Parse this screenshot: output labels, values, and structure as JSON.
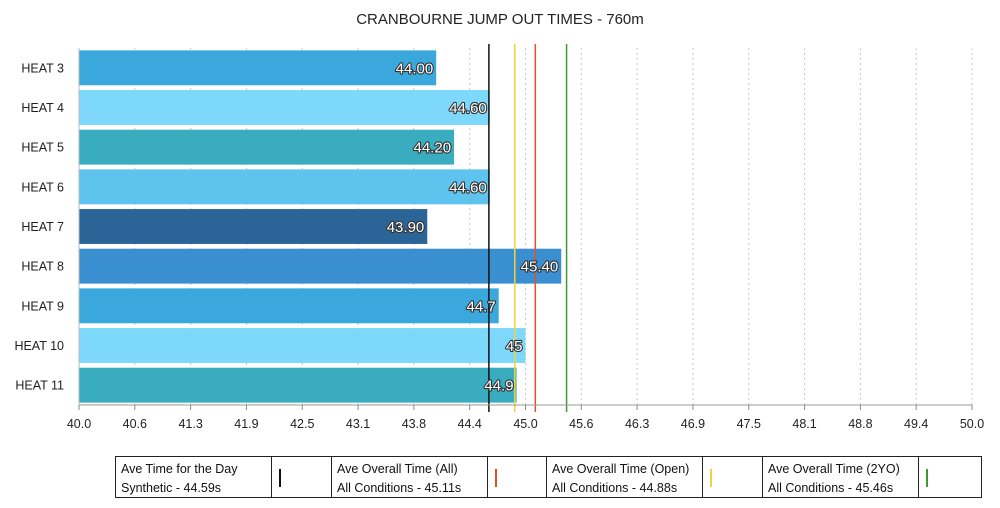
{
  "chart_data": {
    "type": "bar",
    "orientation": "horizontal",
    "title": "CRANBOURNE JUMP OUT TIMES - 760m",
    "categories": [
      "HEAT 3",
      "HEAT 4",
      "HEAT 5",
      "HEAT 6",
      "HEAT 7",
      "HEAT 8",
      "HEAT 9",
      "HEAT 10",
      "HEAT 11"
    ],
    "values": [
      44.0,
      44.6,
      44.2,
      44.6,
      43.9,
      45.4,
      44.7,
      45,
      44.9
    ],
    "value_labels": [
      "44.00",
      "44.60",
      "44.20",
      "44.60",
      "43.90",
      "45.40",
      "44.7",
      "45",
      "44.9"
    ],
    "bar_colors": [
      "#3aa8dd",
      "#7ed8fb",
      "#3aacc0",
      "#5ec3ed",
      "#2b6497",
      "#3a8fd1",
      "#3aa8dd",
      "#7ed8fb",
      "#3aacc0"
    ],
    "xlim": [
      40.0,
      50.0
    ],
    "x_ticks": [
      "40.0",
      "40.6",
      "41.3",
      "41.9",
      "42.5",
      "43.1",
      "43.8",
      "44.4",
      "45.0",
      "45.6",
      "46.3",
      "46.9",
      "47.5",
      "48.1",
      "48.8",
      "49.4",
      "50.0"
    ],
    "grid": "vertical-dashed",
    "legend_position": "bottom",
    "reference_lines": [
      {
        "value": 44.59,
        "color": "#111111",
        "label_line1": "Ave Time for the Day",
        "label_line2": "Synthetic - 44.59s"
      },
      {
        "value": 45.11,
        "color": "#e2502b",
        "label_line1": "Ave Overall Time (All)",
        "label_line2": "All Conditions - 45.11s"
      },
      {
        "value": 44.88,
        "color": "#f2d23a",
        "label_line1": "Ave Overall Time (Open)",
        "label_line2": "All Conditions - 44.88s"
      },
      {
        "value": 45.46,
        "color": "#3f9a2e",
        "label_line1": "Ave Overall Time (2YO)",
        "label_line2": "All Conditions - 45.46s"
      }
    ]
  }
}
